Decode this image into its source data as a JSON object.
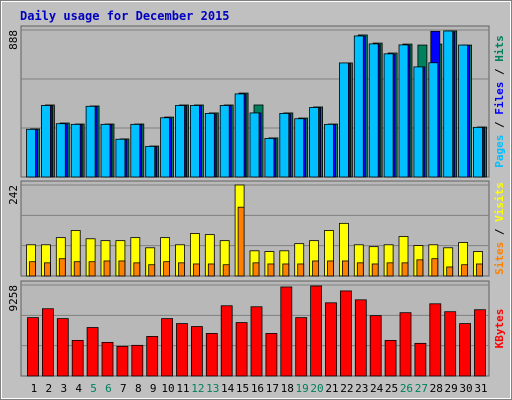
{
  "chart_data": [
    {
      "type": "bar",
      "title": "Daily usage for December 2015",
      "series": [
        {
          "name": "Hits",
          "color": "#00805c",
          "values": [
            290,
            435,
            326,
            320,
            429,
            320,
            230,
            320,
            187,
            362,
            435,
            435,
            387,
            435,
            507,
            435,
            236,
            387,
            356,
            423,
            320,
            689,
            858,
            809,
            749,
            803,
            797,
            803,
            882,
            797,
            302
          ]
        },
        {
          "name": "Files",
          "color": "#0000ff",
          "values": [
            285,
            430,
            320,
            315,
            425,
            315,
            225,
            315,
            183,
            355,
            430,
            430,
            380,
            430,
            500,
            387,
            230,
            380,
            350,
            418,
            315,
            685,
            850,
            800,
            740,
            795,
            665,
            880,
            875,
            795,
            298
          ]
        },
        {
          "name": "Pages",
          "color": "#00c0ff",
          "values": [
            288,
            432,
            322,
            318,
            427,
            318,
            228,
            318,
            185,
            358,
            432,
            432,
            384,
            432,
            502,
            387,
            233,
            384,
            352,
            420,
            318,
            689,
            852,
            804,
            744,
            798,
            665,
            690,
            882,
            797,
            300
          ]
        }
      ],
      "legend_separator": " / ",
      "ylim": [
        0,
        888
      ],
      "yticks": [
        888
      ],
      "grid": true
    },
    {
      "type": "bar",
      "series": [
        {
          "name": "Visits",
          "color": "#ffff00",
          "values": [
            83,
            83,
            102,
            121,
            99,
            94,
            94,
            102,
            75,
            102,
            83,
            113,
            110,
            94,
            242,
            67,
            65,
            67,
            86,
            94,
            121,
            140,
            83,
            78,
            83,
            105,
            81,
            83,
            75,
            89,
            65
          ]
        },
        {
          "name": "Sites",
          "color": "#ff8000",
          "values": [
            38,
            35,
            46,
            38,
            38,
            40,
            40,
            35,
            30,
            38,
            35,
            32,
            32,
            30,
            183,
            35,
            32,
            32,
            32,
            40,
            40,
            40,
            35,
            32,
            35,
            35,
            43,
            46,
            24,
            30,
            32
          ]
        }
      ],
      "legend_separator": " / ",
      "ylim": [
        0,
        242
      ],
      "yticks": [
        242
      ],
      "grid": true
    },
    {
      "type": "bar",
      "series": [
        {
          "name": "KBytes",
          "color": "#ff0000",
          "values": [
            5937,
            6843,
            5837,
            3623,
            4931,
            3421,
            3019,
            3120,
            4025,
            5837,
            5333,
            5032,
            4327,
            7145,
            5434,
            7044,
            4327,
            9057,
            5937,
            9157,
            7447,
            8654,
            7749,
            6139,
            3623,
            6440,
            3321,
            7346,
            6541,
            5333,
            6742
          ]
        }
      ],
      "ylim": [
        0,
        9258
      ],
      "yticks": [
        9258
      ],
      "grid": true,
      "categories": [
        "1",
        "2",
        "3",
        "4",
        "5",
        "6",
        "7",
        "8",
        "9",
        "10",
        "11",
        "12",
        "13",
        "14",
        "15",
        "16",
        "17",
        "18",
        "19",
        "20",
        "21",
        "22",
        "23",
        "24",
        "25",
        "26",
        "27",
        "28",
        "29",
        "30",
        "31"
      ],
      "category_colors": [
        "#000000",
        "#000000",
        "#000000",
        "#000000",
        "#00805c",
        "#00805c",
        "#000000",
        "#000000",
        "#000000",
        "#000000",
        "#000000",
        "#00805c",
        "#00805c",
        "#000000",
        "#000000",
        "#000000",
        "#000000",
        "#000000",
        "#00805c",
        "#00805c",
        "#000000",
        "#000000",
        "#000000",
        "#000000",
        "#000000",
        "#00805c",
        "#00805c",
        "#000000",
        "#000000",
        "#000000",
        "#000000"
      ]
    }
  ]
}
